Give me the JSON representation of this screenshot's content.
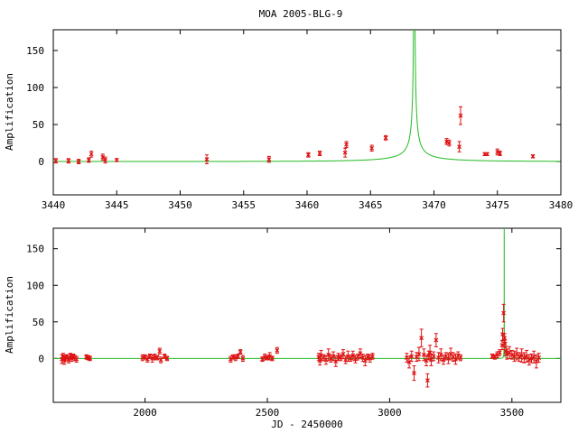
{
  "title": "MOA 2005-BLG-9",
  "colors": {
    "model": "#22bb22",
    "points": "#dd1111",
    "frame": "#000000"
  },
  "chart_data": [
    {
      "type": "scatter",
      "title": "MOA 2005-BLG-9",
      "xlabel": "",
      "ylabel": "Amplification",
      "xlim": [
        3440,
        3480
      ],
      "ylim": [
        -45,
        178
      ],
      "xticks": [
        "3440",
        "3445",
        "3450",
        "3455",
        "3460",
        "3465",
        "3470",
        "3475",
        "3480"
      ],
      "yticks": [
        "0",
        "50",
        "100",
        "150"
      ],
      "grid": false,
      "model_curve": {
        "name": "",
        "t0": 3468.45,
        "u0": 0.004,
        "tE": 8.5,
        "baseline": 1.5
      },
      "series": [
        {
          "name": "",
          "x": [
            3440.2,
            3441.2,
            3442.0,
            3442.8,
            3443.0,
            3443.9,
            3444.1,
            3445.0,
            3452.1,
            3457.0,
            3460.1,
            3461.0,
            3463.0,
            3463.1,
            3465.1,
            3466.2,
            3471.0,
            3471.2,
            3472.0,
            3472.1,
            3474.0,
            3474.2,
            3475.0,
            3475.2,
            3477.8
          ],
          "y": [
            1,
            1,
            0,
            2,
            10,
            6,
            2,
            2,
            3,
            3,
            9,
            11,
            12,
            23,
            18,
            32,
            27,
            25,
            20,
            62,
            10,
            10,
            13,
            11,
            7
          ],
          "err": [
            3,
            3,
            3,
            3,
            4,
            4,
            4,
            2,
            6,
            4,
            3,
            3,
            6,
            4,
            4,
            3,
            4,
            4,
            7,
            12,
            2,
            2,
            4,
            3,
            2
          ]
        }
      ]
    },
    {
      "type": "scatter",
      "title": "",
      "xlabel": "JD - 2450000",
      "ylabel": "Amplification",
      "xlim": [
        1625,
        3700
      ],
      "ylim": [
        -60,
        178
      ],
      "xticks": [
        "2000",
        "2500",
        "3000",
        "3500"
      ],
      "yticks": [
        "0",
        "50",
        "100",
        "150"
      ],
      "grid": false,
      "model_curve": {
        "name": "",
        "t0": 3468.45,
        "u0": 0.004,
        "tE": 8.5,
        "baseline": 1.5
      },
      "series": [
        {
          "name": "",
          "x": [
            1660,
            1665,
            1670,
            1676,
            1680,
            1688,
            1695,
            1700,
            1706,
            1712,
            1720,
            1760,
            1768,
            1775,
            1990,
            2000,
            2010,
            2020,
            2030,
            2040,
            2050,
            2060,
            2065,
            2080,
            2090,
            2350,
            2360,
            2370,
            2380,
            2390,
            2400,
            2480,
            2490,
            2500,
            2510,
            2520,
            2540,
            2710,
            2715,
            2720,
            2730,
            2740,
            2750,
            2760,
            2770,
            2780,
            2790,
            2800,
            2810,
            2820,
            2830,
            2840,
            2850,
            2860,
            2870,
            2880,
            2890,
            2900,
            2910,
            2920,
            2930,
            3070,
            3080,
            3090,
            3100,
            3110,
            3120,
            3130,
            3140,
            3150,
            3155,
            3160,
            3165,
            3170,
            3180,
            3190,
            3200,
            3210,
            3220,
            3230,
            3240,
            3250,
            3260,
            3270,
            3280,
            3290,
            3420,
            3430,
            3440,
            3450,
            3460,
            3462,
            3466,
            3470,
            3472,
            3475,
            3480,
            3490,
            3500,
            3510,
            3520,
            3530,
            3540,
            3550,
            3560,
            3570,
            3580,
            3590,
            3600,
            3610
          ],
          "y": [
            -1,
            3,
            -3,
            1,
            2,
            -2,
            4,
            0,
            3,
            1,
            -1,
            2,
            1,
            0,
            1,
            2,
            -1,
            3,
            0,
            2,
            1,
            10,
            -2,
            3,
            0,
            -1,
            2,
            1,
            3,
            9,
            0,
            -1,
            2,
            1,
            3,
            0,
            11,
            2,
            -3,
            4,
            1,
            -2,
            5,
            0,
            3,
            -4,
            2,
            1,
            6,
            -2,
            3,
            0,
            4,
            -1,
            2,
            7,
            1,
            -3,
            2,
            0,
            3,
            1,
            -5,
            3,
            -20,
            2,
            6,
            28,
            5,
            -3,
            -30,
            4,
            8,
            -2,
            3,
            25,
            1,
            5,
            -2,
            3,
            0,
            6,
            2,
            -1,
            4,
            1,
            3,
            2,
            5,
            8,
            18,
            33,
            62,
            28,
            20,
            10,
            6,
            8,
            5,
            3,
            6,
            2,
            4,
            1,
            3,
            -2,
            0,
            2,
            -4,
            1
          ],
          "err": [
            6,
            4,
            5,
            4,
            3,
            4,
            3,
            4,
            3,
            4,
            4,
            3,
            3,
            3,
            4,
            3,
            4,
            3,
            5,
            4,
            3,
            4,
            4,
            3,
            3,
            4,
            3,
            4,
            3,
            3,
            4,
            3,
            4,
            3,
            5,
            3,
            4,
            5,
            6,
            7,
            4,
            6,
            8,
            5,
            6,
            7,
            5,
            4,
            6,
            5,
            7,
            4,
            6,
            5,
            4,
            6,
            5,
            7,
            4,
            5,
            4,
            6,
            8,
            7,
            10,
            6,
            9,
            12,
            8,
            7,
            9,
            6,
            10,
            8,
            6,
            9,
            7,
            8,
            6,
            5,
            7,
            8,
            6,
            7,
            5,
            4,
            3,
            3,
            4,
            4,
            6,
            8,
            12,
            6,
            5,
            6,
            7,
            8,
            6,
            7,
            8,
            6,
            9,
            7,
            8,
            7,
            6,
            8,
            9,
            6
          ]
        }
      ]
    }
  ]
}
